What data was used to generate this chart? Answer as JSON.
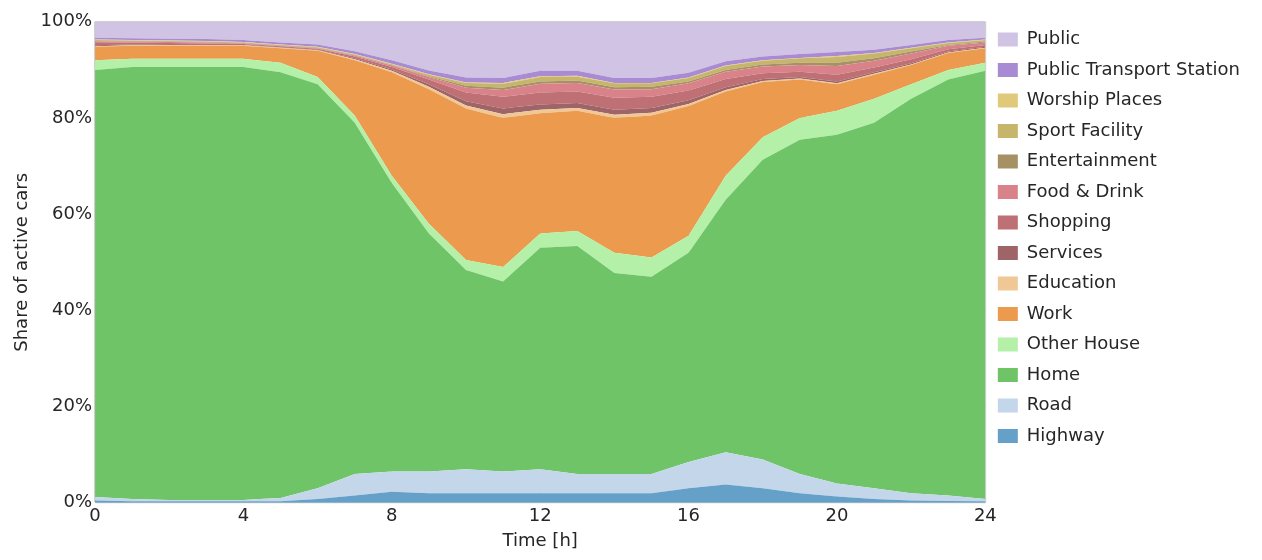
{
  "chart_data": {
    "type": "area",
    "stacked": true,
    "xlabel": "Time [h]",
    "ylabel": "Share of active cars",
    "x": [
      0,
      1,
      2,
      3,
      4,
      5,
      6,
      7,
      8,
      9,
      10,
      11,
      12,
      13,
      14,
      15,
      16,
      17,
      18,
      19,
      20,
      21,
      22,
      23,
      24
    ],
    "xlim": [
      0,
      24
    ],
    "xticks": [
      0,
      4,
      8,
      12,
      16,
      20,
      24
    ],
    "ylim": [
      0,
      100
    ],
    "yticks": [
      {
        "value": 0,
        "label": "0%"
      },
      {
        "value": 20,
        "label": "20%"
      },
      {
        "value": 40,
        "label": "40%"
      },
      {
        "value": 60,
        "label": "60%"
      },
      {
        "value": 80,
        "label": "80%"
      },
      {
        "value": 100,
        "label": "100%"
      }
    ],
    "grid": true,
    "legend": "right",
    "series": [
      {
        "name": "Highway",
        "color": "#64a0c8",
        "values": [
          0.5,
          0.3,
          0.3,
          0.3,
          0.3,
          0.3,
          0.8,
          1.5,
          2.3,
          2,
          2,
          2,
          2,
          2,
          2,
          2,
          3,
          3.8,
          3,
          2,
          1.3,
          0.8,
          0.5,
          0.4,
          0.3
        ]
      },
      {
        "name": "Road",
        "color": "#c3d6ea",
        "values": [
          0.7,
          0.5,
          0.3,
          0.3,
          0.3,
          0.7,
          2.2,
          4.5,
          4.2,
          4.5,
          5,
          4.5,
          5,
          4,
          4,
          4,
          5.5,
          6.7,
          6,
          4,
          2.7,
          2.2,
          1.5,
          1.1,
          0.5
        ]
      },
      {
        "name": "Home",
        "color": "#6ec466",
        "values": [
          88.8,
          89.8,
          90,
          90,
          90,
          88.5,
          84,
          73,
          60,
          49.5,
          41.4,
          39.5,
          46,
          47.4,
          41.8,
          41,
          43.5,
          52.5,
          62.3,
          69.5,
          72.5,
          76,
          82,
          86.5,
          89
        ]
      },
      {
        "name": "Other House",
        "color": "#b4f0a8",
        "values": [
          2,
          1.7,
          1.7,
          1.7,
          1.7,
          2,
          1.5,
          1.5,
          1.5,
          2,
          2.1,
          3,
          3,
          3.1,
          4.2,
          4,
          3.5,
          5,
          4.7,
          4.5,
          5,
          5,
          3,
          2,
          1.7
        ]
      },
      {
        "name": "Work",
        "color": "#ec9a4e",
        "values": [
          2.8,
          2.7,
          2.7,
          2.7,
          2.7,
          3,
          5.5,
          11.5,
          21.5,
          28,
          31.5,
          31,
          25,
          25,
          28,
          29.5,
          27,
          17.5,
          11.5,
          8,
          5.5,
          5,
          4,
          3.5,
          3
        ]
      },
      {
        "name": "Education",
        "color": "#efc896",
        "values": [
          0.1,
          0.1,
          0.1,
          0.1,
          0.1,
          0.1,
          0.1,
          0.2,
          0.3,
          0.5,
          0.6,
          0.8,
          0.7,
          0.6,
          0.7,
          0.6,
          0.4,
          0.3,
          0.2,
          0.2,
          0.2,
          0.2,
          0.1,
          0.1,
          0.1
        ]
      },
      {
        "name": "Services",
        "color": "#9e6468",
        "values": [
          0.2,
          0.2,
          0.1,
          0.1,
          0.1,
          0.1,
          0.1,
          0.2,
          0.3,
          0.5,
          0.9,
          1.2,
          1.1,
          1,
          1,
          1,
          0.8,
          0.6,
          0.4,
          0.3,
          0.4,
          0.3,
          0.3,
          0.2,
          0.2
        ]
      },
      {
        "name": "Shopping",
        "color": "#bf7074",
        "values": [
          0.5,
          0.4,
          0.4,
          0.3,
          0.2,
          0.2,
          0.2,
          0.4,
          0.5,
          1,
          1.8,
          2.4,
          2.5,
          2.4,
          2.5,
          2.3,
          2,
          1.7,
          1.2,
          1.1,
          1.4,
          1,
          0.8,
          0.5,
          0.4
        ]
      },
      {
        "name": "Food & Drink",
        "color": "#d9828a",
        "values": [
          0.3,
          0.2,
          0.2,
          0.2,
          0.1,
          0.1,
          0.1,
          0.2,
          0.3,
          0.5,
          1,
          1.4,
          1.8,
          1.8,
          1.7,
          1.6,
          1.5,
          1.5,
          1.4,
          1.4,
          1.8,
          1.4,
          1.2,
          0.7,
          0.5
        ]
      },
      {
        "name": "Entertainment",
        "color": "#a59164",
        "values": [
          0.1,
          0.1,
          0.1,
          0.1,
          0.1,
          0.1,
          0.1,
          0.1,
          0.1,
          0.2,
          0.4,
          0.5,
          0.5,
          0.5,
          0.5,
          0.5,
          0.4,
          0.4,
          0.4,
          0.5,
          0.7,
          0.5,
          0.4,
          0.2,
          0.2
        ]
      },
      {
        "name": "Sport Facility",
        "color": "#c6b56b",
        "values": [
          0.2,
          0.1,
          0.1,
          0.1,
          0.1,
          0.1,
          0.1,
          0.1,
          0.2,
          0.3,
          0.6,
          0.8,
          0.9,
          0.8,
          0.8,
          0.7,
          0.7,
          0.8,
          0.8,
          0.9,
          1.2,
          1,
          0.7,
          0.4,
          0.3
        ]
      },
      {
        "name": "Worship Places",
        "color": "#e0c97a",
        "values": [
          0.1,
          0.1,
          0.1,
          0.1,
          0.1,
          0.1,
          0.1,
          0.1,
          0.1,
          0.1,
          0.1,
          0.2,
          0.2,
          0.2,
          0.1,
          0.1,
          0.1,
          0.1,
          0.1,
          0.1,
          0.2,
          0.1,
          0.1,
          0.1,
          0.1
        ]
      },
      {
        "name": "Public Transport Station",
        "color": "#a98bd4",
        "values": [
          0.4,
          0.4,
          0.4,
          0.4,
          0.4,
          0.4,
          0.5,
          0.6,
          0.7,
          0.8,
          1,
          1,
          1.1,
          1,
          1,
          1,
          1,
          0.9,
          0.8,
          0.8,
          0.8,
          0.7,
          0.6,
          0.5,
          0.4
        ]
      },
      {
        "name": "Public",
        "color": "#d0c3e3",
        "values": [
          3.3,
          3.4,
          3.5,
          3.6,
          3.8,
          4.3,
          4.7,
          6.1,
          8,
          10.1,
          11.6,
          11.7,
          10.2,
          10.2,
          11.7,
          11.7,
          10.6,
          8.2,
          7.2,
          6.7,
          6.3,
          5.8,
          4.8,
          3.8,
          3.3
        ]
      }
    ]
  }
}
